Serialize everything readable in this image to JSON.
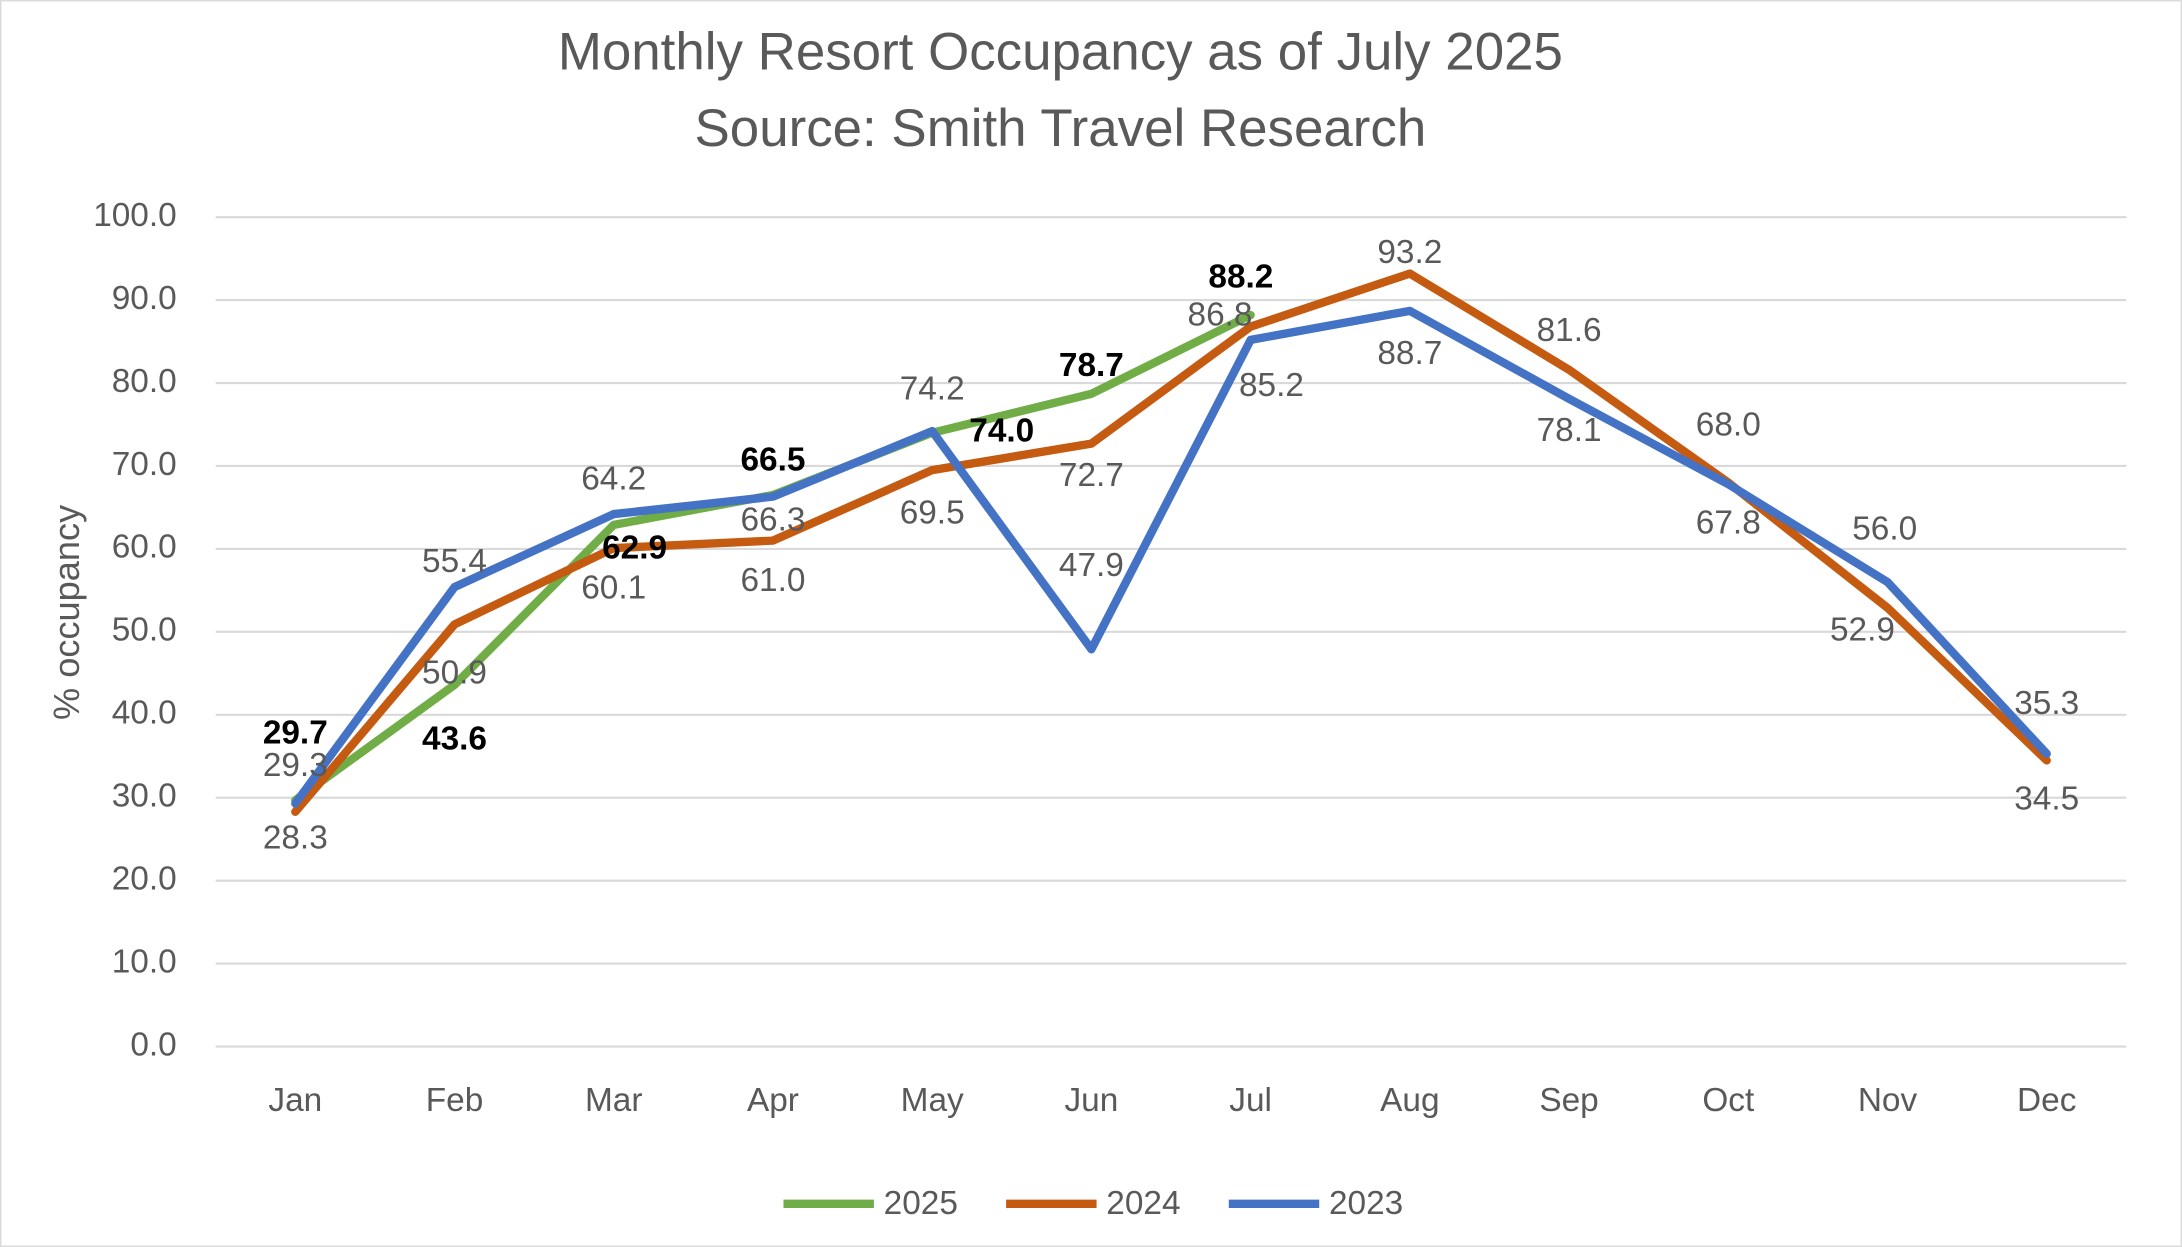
{
  "chart_data": {
    "type": "line",
    "title": "Monthly Resort Occupancy as of July 2025",
    "subtitle": "Source: Smith Travel Research",
    "y_label": "% occupancy",
    "categories": [
      "Jan",
      "Feb",
      "Mar",
      "Apr",
      "May",
      "Jun",
      "Jul",
      "Aug",
      "Sep",
      "Oct",
      "Nov",
      "Dec"
    ],
    "series": [
      {
        "name": "2025",
        "color": "#70ad47",
        "bold_labels": true,
        "values": [
          29.7,
          43.6,
          62.9,
          66.5,
          74.0,
          78.7,
          88.2,
          null,
          null,
          null,
          null,
          null
        ],
        "value_labels": [
          "29.7",
          "43.6",
          "62.9",
          "66.5",
          "74.0",
          "78.7",
          "88.2",
          null,
          null,
          null,
          null,
          null
        ]
      },
      {
        "name": "2024",
        "color": "#c55a11",
        "values": [
          28.3,
          50.9,
          60.1,
          61.0,
          69.5,
          72.7,
          86.8,
          93.2,
          81.6,
          68.0,
          52.9,
          34.5
        ],
        "value_labels": [
          "28.3",
          "50.9",
          "60.1",
          "61.0",
          "69.5",
          "72.7",
          "86.8",
          "93.2",
          "81.6",
          "68.0",
          "52.9",
          "34.5"
        ]
      },
      {
        "name": "2023",
        "color": "#4472c4",
        "values": [
          29.3,
          55.4,
          64.2,
          66.3,
          74.2,
          47.9,
          85.2,
          88.7,
          78.1,
          67.8,
          56.0,
          35.3
        ],
        "value_labels": [
          "29.3",
          "55.4",
          "64.2",
          "66.3",
          "74.2",
          "47.9",
          "85.2",
          "88.7",
          "78.1",
          "67.8",
          "56.0",
          "35.3"
        ]
      }
    ],
    "ylim": [
      0,
      100
    ],
    "yticks": [
      {
        "value": 0,
        "label": "0.0"
      },
      {
        "value": 10,
        "label": "10.0"
      },
      {
        "value": 20,
        "label": "20.0"
      },
      {
        "value": 30,
        "label": "30.0"
      },
      {
        "value": 40,
        "label": "40.0"
      },
      {
        "value": 50,
        "label": "50.0"
      },
      {
        "value": 60,
        "label": "60.0"
      },
      {
        "value": 70,
        "label": "70.0"
      },
      {
        "value": 80,
        "label": "80.0"
      },
      {
        "value": 90,
        "label": "90.0"
      },
      {
        "value": 100,
        "label": "100.0"
      }
    ],
    "grid": true,
    "legend": "bottom"
  }
}
